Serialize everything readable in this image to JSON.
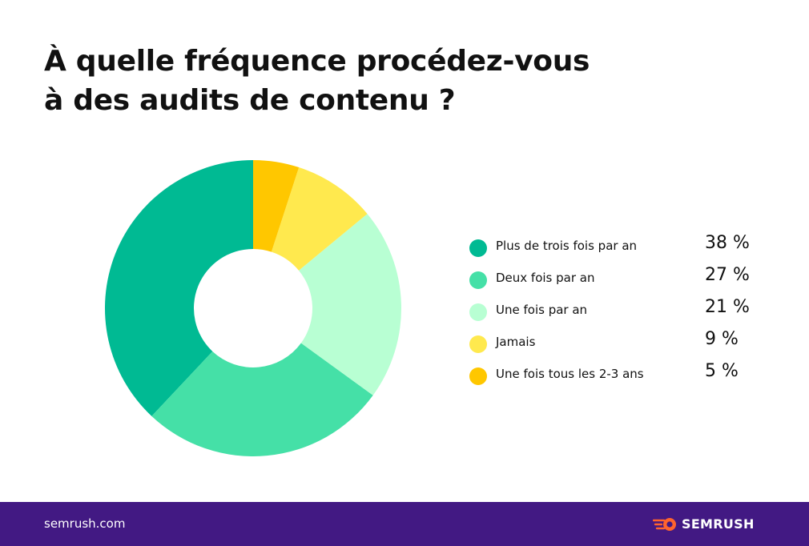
{
  "title_lines": [
    "À quelle fréquence procédez-vous",
    "à des audits de contenu ?"
  ],
  "chart_data": {
    "type": "pie",
    "donut": true,
    "legend_position": "right",
    "slices": [
      {
        "label": "Plus de trois fois par an",
        "value": 38,
        "value_label": "38 %",
        "color": "#00BA93"
      },
      {
        "label": "Deux fois par an",
        "value": 27,
        "value_label": "27 %",
        "color": "#45E0A7"
      },
      {
        "label": "Une fois par an",
        "value": 21,
        "value_label": "21 %",
        "color": "#B8FFD3"
      },
      {
        "label": "Jamais",
        "value": 9,
        "value_label": "9 %",
        "color": "#FFE94E"
      },
      {
        "label": "Une fois tous les 2-3 ans",
        "value": 5,
        "value_label": "5 %",
        "color": "#FFC700"
      }
    ]
  },
  "footer": {
    "url": "semrush.com",
    "brand": "SEMRUSH",
    "background": "#421983",
    "logo_icon": "semrush-fireball-icon",
    "logo_color": "#FF642D"
  }
}
